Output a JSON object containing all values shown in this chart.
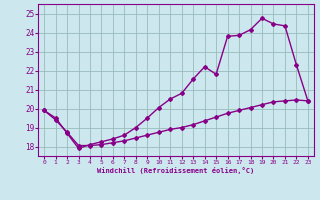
{
  "xlabel": "Windchill (Refroidissement éolien,°C)",
  "background_color": "#cce8ee",
  "line_color": "#880088",
  "xlim": [
    -0.5,
    23.5
  ],
  "ylim": [
    17.5,
    25.5
  ],
  "yticks": [
    18,
    19,
    20,
    21,
    22,
    23,
    24,
    25
  ],
  "xticks": [
    0,
    1,
    2,
    3,
    4,
    5,
    6,
    7,
    8,
    9,
    10,
    11,
    12,
    13,
    14,
    15,
    16,
    17,
    18,
    19,
    20,
    21,
    22,
    23
  ],
  "upper_x": [
    0,
    1,
    2,
    3,
    4,
    5,
    6,
    7,
    8,
    9,
    10,
    11,
    12,
    13,
    14,
    15,
    16,
    17,
    18,
    19,
    20,
    21,
    22,
    23
  ],
  "upper_y": [
    19.9,
    19.5,
    18.7,
    17.9,
    18.1,
    18.25,
    18.4,
    18.6,
    19.0,
    19.5,
    20.05,
    20.5,
    20.8,
    21.55,
    22.2,
    21.8,
    23.8,
    23.85,
    24.15,
    24.75,
    24.45,
    24.35,
    22.3,
    20.4
  ],
  "lower_x": [
    0,
    1,
    2,
    3,
    4,
    5,
    6,
    7,
    8,
    9,
    10,
    11,
    12,
    13,
    14,
    15,
    16,
    17,
    18,
    19,
    20,
    21,
    22,
    23
  ],
  "lower_y": [
    19.9,
    19.4,
    18.75,
    18.05,
    18.05,
    18.1,
    18.2,
    18.3,
    18.45,
    18.6,
    18.75,
    18.9,
    19.0,
    19.15,
    19.35,
    19.55,
    19.75,
    19.9,
    20.05,
    20.2,
    20.35,
    20.4,
    20.45,
    20.4
  ],
  "grid_color": "#99bbbb",
  "marker": "D",
  "markersize": 2,
  "linewidth": 1.0
}
